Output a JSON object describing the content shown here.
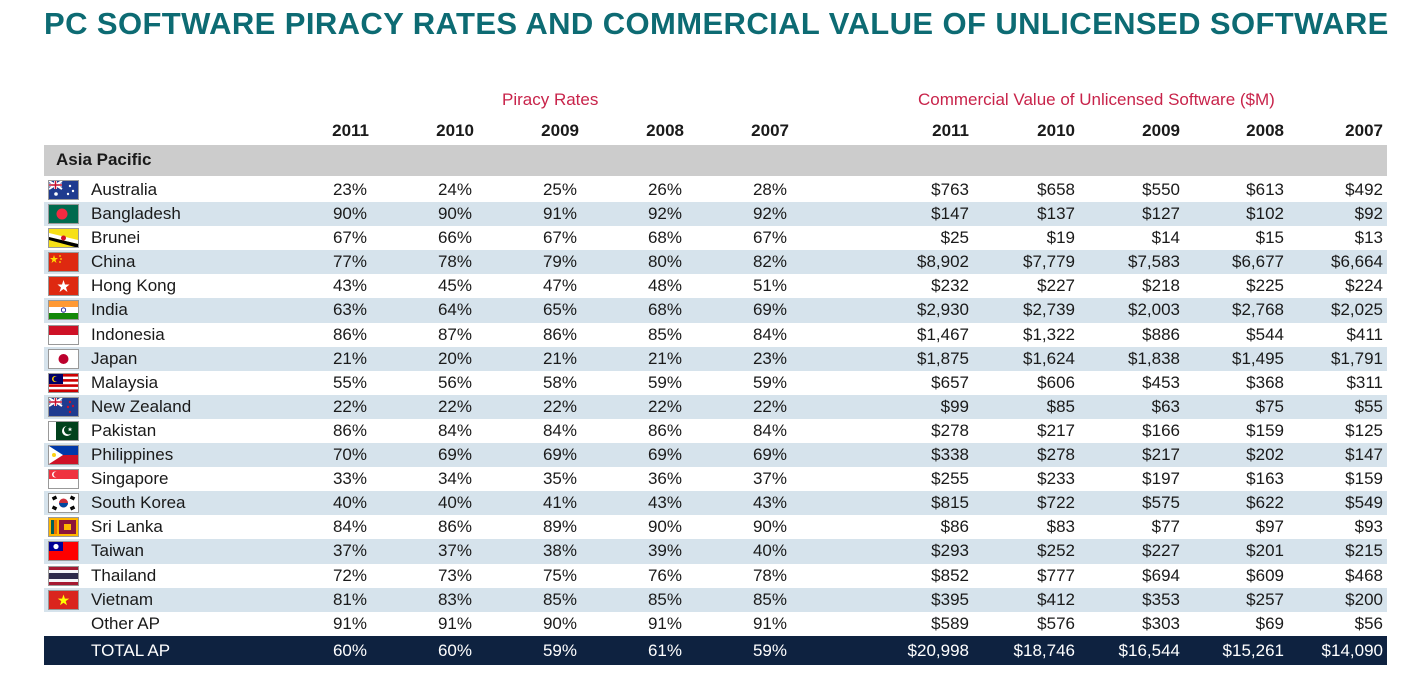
{
  "title": "PC SOFTWARE PIRACY RATES AND COMMERCIAL VALUE OF UNLICENSED SOFTWARE",
  "groups": {
    "piracy": "Piracy Rates",
    "value": "Commercial Value of Unlicensed Software ($M)"
  },
  "years": [
    "2011",
    "2010",
    "2009",
    "2008",
    "2007"
  ],
  "section": "Asia Pacific",
  "rows": [
    {
      "country": "Australia",
      "flag": "australia-flag-icon",
      "rates": [
        "23%",
        "24%",
        "25%",
        "26%",
        "28%"
      ],
      "values": [
        "$763",
        "$658",
        "$550",
        "$613",
        "$492"
      ]
    },
    {
      "country": "Bangladesh",
      "flag": "bangladesh-flag-icon",
      "rates": [
        "90%",
        "90%",
        "91%",
        "92%",
        "92%"
      ],
      "values": [
        "$147",
        "$137",
        "$127",
        "$102",
        "$92"
      ]
    },
    {
      "country": "Brunei",
      "flag": "brunei-flag-icon",
      "rates": [
        "67%",
        "66%",
        "67%",
        "68%",
        "67%"
      ],
      "values": [
        "$25",
        "$19",
        "$14",
        "$15",
        "$13"
      ]
    },
    {
      "country": "China",
      "flag": "china-flag-icon",
      "rates": [
        "77%",
        "78%",
        "79%",
        "80%",
        "82%"
      ],
      "values": [
        "$8,902",
        "$7,779",
        "$7,583",
        "$6,677",
        "$6,664"
      ]
    },
    {
      "country": "Hong Kong",
      "flag": "hong-kong-flag-icon",
      "rates": [
        "43%",
        "45%",
        "47%",
        "48%",
        "51%"
      ],
      "values": [
        "$232",
        "$227",
        "$218",
        "$225",
        "$224"
      ]
    },
    {
      "country": "India",
      "flag": "india-flag-icon",
      "rates": [
        "63%",
        "64%",
        "65%",
        "68%",
        "69%"
      ],
      "values": [
        "$2,930",
        "$2,739",
        "$2,003",
        "$2,768",
        "$2,025"
      ]
    },
    {
      "country": "Indonesia",
      "flag": "indonesia-flag-icon",
      "rates": [
        "86%",
        "87%",
        "86%",
        "85%",
        "84%"
      ],
      "values": [
        "$1,467",
        "$1,322",
        "$886",
        "$544",
        "$411"
      ]
    },
    {
      "country": "Japan",
      "flag": "japan-flag-icon",
      "rates": [
        "21%",
        "20%",
        "21%",
        "21%",
        "23%"
      ],
      "values": [
        "$1,875",
        "$1,624",
        "$1,838",
        "$1,495",
        "$1,791"
      ]
    },
    {
      "country": "Malaysia",
      "flag": "malaysia-flag-icon",
      "rates": [
        "55%",
        "56%",
        "58%",
        "59%",
        "59%"
      ],
      "values": [
        "$657",
        "$606",
        "$453",
        "$368",
        "$311"
      ]
    },
    {
      "country": "New Zealand",
      "flag": "new-zealand-flag-icon",
      "rates": [
        "22%",
        "22%",
        "22%",
        "22%",
        "22%"
      ],
      "values": [
        "$99",
        "$85",
        "$63",
        "$75",
        "$55"
      ]
    },
    {
      "country": "Pakistan",
      "flag": "pakistan-flag-icon",
      "rates": [
        "86%",
        "84%",
        "84%",
        "86%",
        "84%"
      ],
      "values": [
        "$278",
        "$217",
        "$166",
        "$159",
        "$125"
      ]
    },
    {
      "country": "Philippines",
      "flag": "philippines-flag-icon",
      "rates": [
        "70%",
        "69%",
        "69%",
        "69%",
        "69%"
      ],
      "values": [
        "$338",
        "$278",
        "$217",
        "$202",
        "$147"
      ]
    },
    {
      "country": "Singapore",
      "flag": "singapore-flag-icon",
      "rates": [
        "33%",
        "34%",
        "35%",
        "36%",
        "37%"
      ],
      "values": [
        "$255",
        "$233",
        "$197",
        "$163",
        "$159"
      ]
    },
    {
      "country": "South Korea",
      "flag": "south-korea-flag-icon",
      "rates": [
        "40%",
        "40%",
        "41%",
        "43%",
        "43%"
      ],
      "values": [
        "$815",
        "$722",
        "$575",
        "$622",
        "$549"
      ]
    },
    {
      "country": "Sri Lanka",
      "flag": "sri-lanka-flag-icon",
      "rates": [
        "84%",
        "86%",
        "89%",
        "90%",
        "90%"
      ],
      "values": [
        "$86",
        "$83",
        "$77",
        "$97",
        "$93"
      ]
    },
    {
      "country": "Taiwan",
      "flag": "taiwan-flag-icon",
      "rates": [
        "37%",
        "37%",
        "38%",
        "39%",
        "40%"
      ],
      "values": [
        "$293",
        "$252",
        "$227",
        "$201",
        "$215"
      ]
    },
    {
      "country": "Thailand",
      "flag": "thailand-flag-icon",
      "rates": [
        "72%",
        "73%",
        "75%",
        "76%",
        "78%"
      ],
      "values": [
        "$852",
        "$777",
        "$694",
        "$609",
        "$468"
      ]
    },
    {
      "country": "Vietnam",
      "flag": "vietnam-flag-icon",
      "rates": [
        "81%",
        "83%",
        "85%",
        "85%",
        "85%"
      ],
      "values": [
        "$395",
        "$412",
        "$353",
        "$257",
        "$200"
      ]
    },
    {
      "country": "Other AP",
      "flag": "",
      "rates": [
        "91%",
        "91%",
        "90%",
        "91%",
        "91%"
      ],
      "values": [
        "$589",
        "$576",
        "$303",
        "$69",
        "$56"
      ]
    }
  ],
  "total": {
    "label": "TOTAL AP",
    "rates": [
      "60%",
      "60%",
      "59%",
      "61%",
      "59%"
    ],
    "values": [
      "$20,998",
      "$18,746",
      "$16,544",
      "$15,261",
      "$14,090"
    ]
  },
  "colors": {
    "title": "#0d6b73",
    "group": "#c8234a",
    "stripe": "#d6e3ec",
    "section": "#cccccc",
    "total": "#0e2240"
  }
}
